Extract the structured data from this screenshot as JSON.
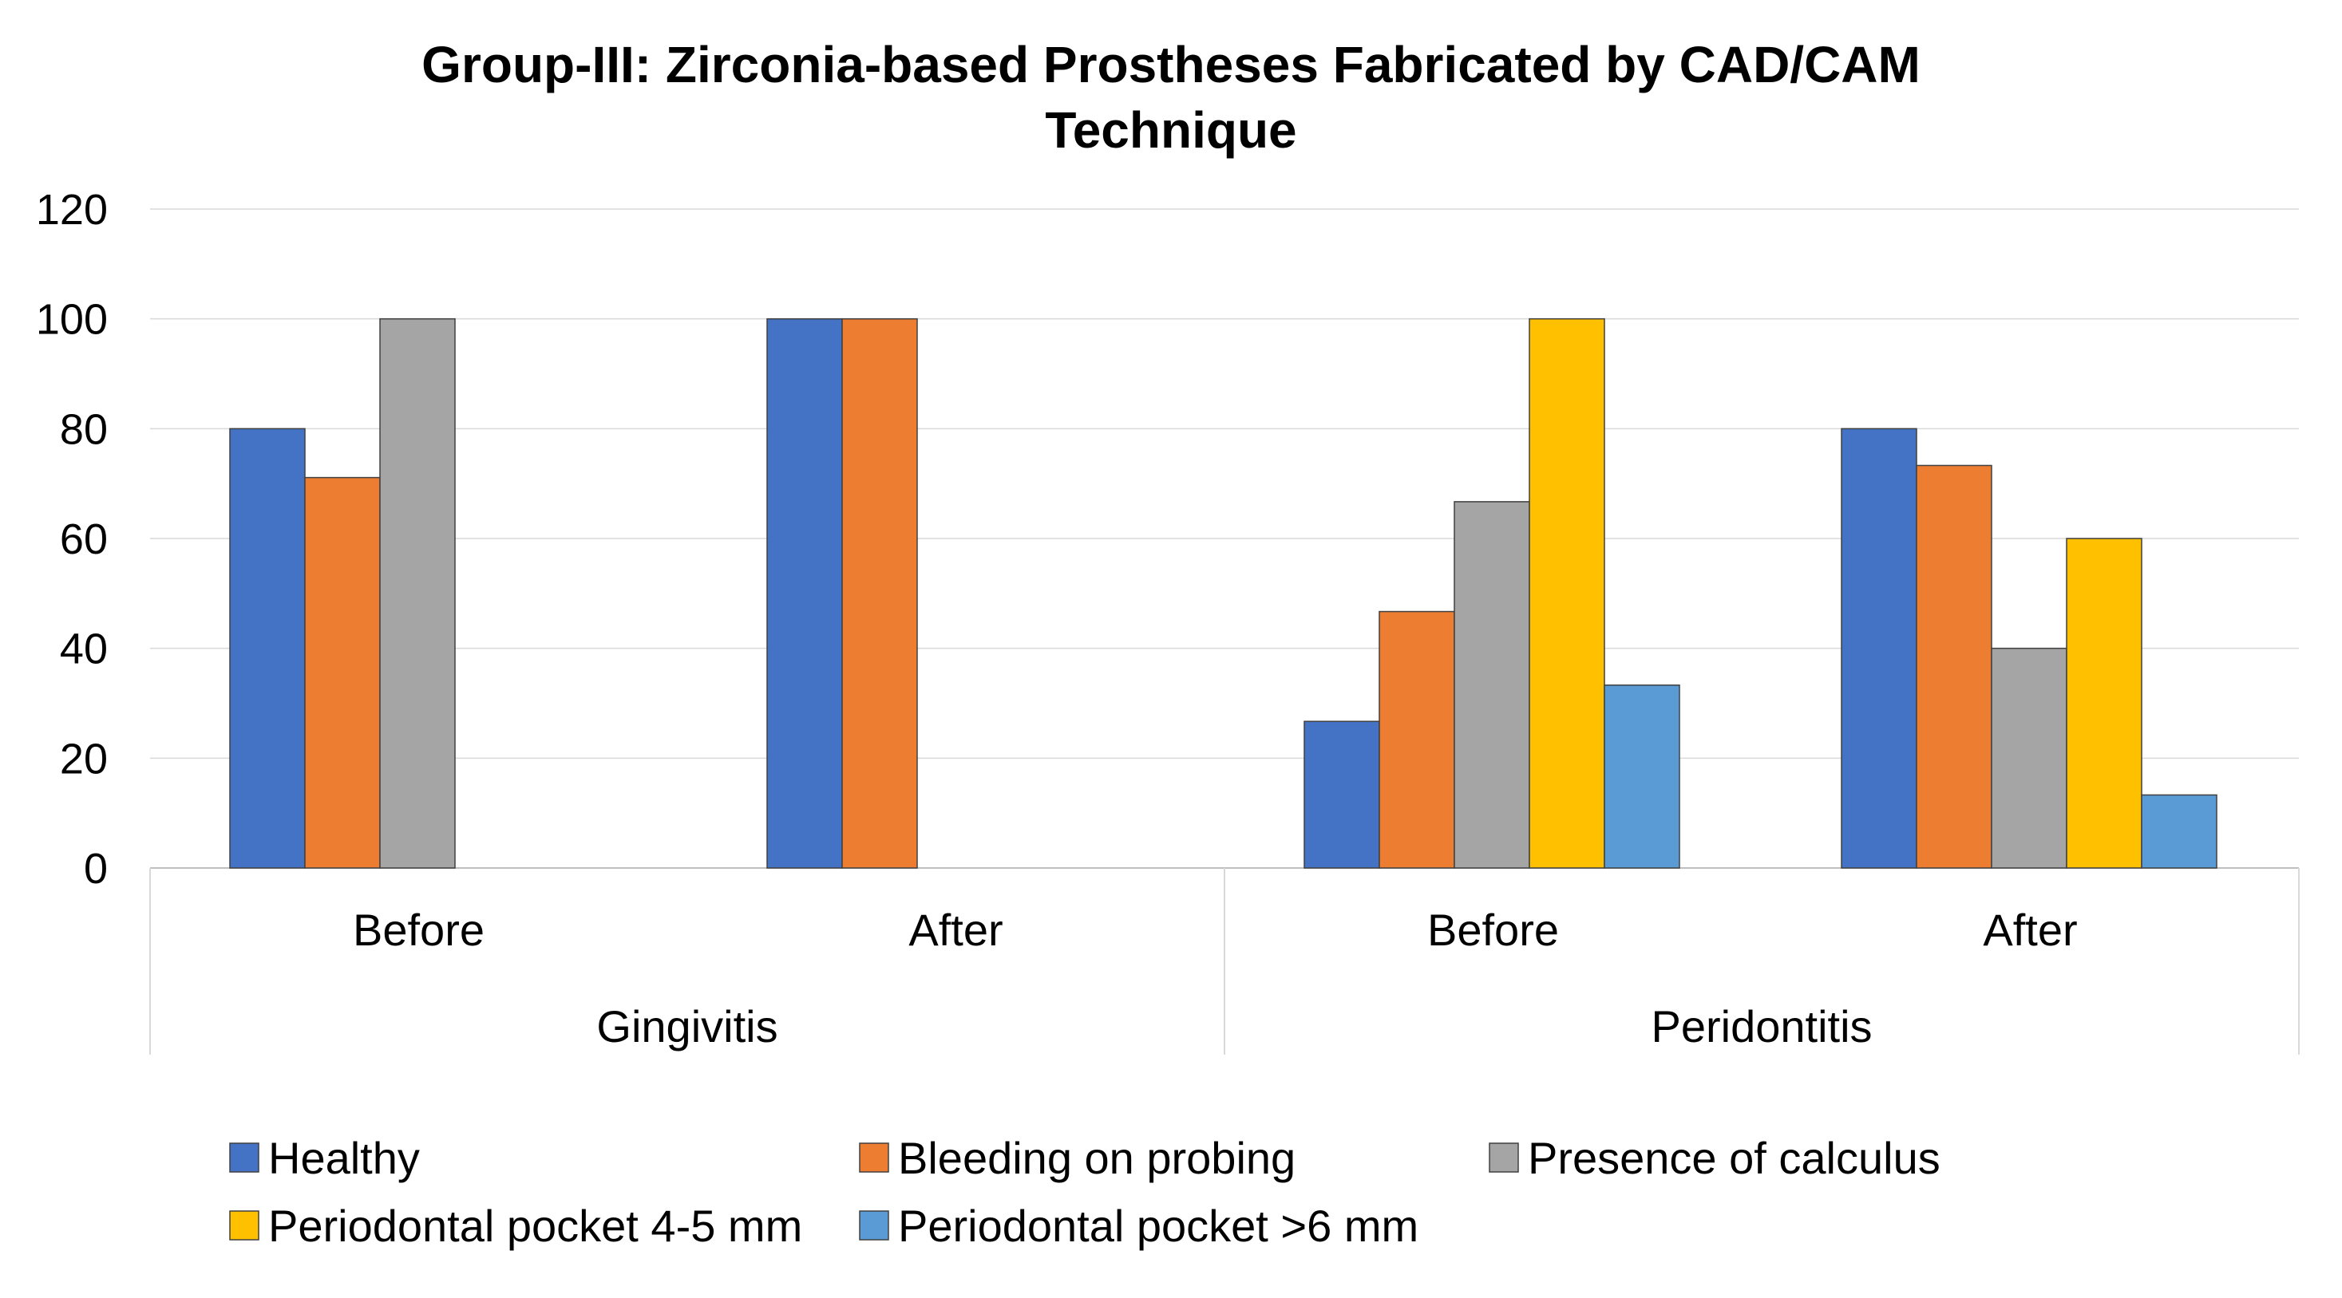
{
  "chart_data": {
    "type": "bar",
    "title_lines": [
      "Group-III:  Zirconia-based Prostheses Fabricated by CAD/CAM",
      "Technique"
    ],
    "ylim": [
      0,
      120
    ],
    "y_ticks": [
      "0",
      "20",
      "40",
      "60",
      "80",
      "100",
      "120"
    ],
    "groups": [
      {
        "label": "Gingivitis",
        "categories": [
          "Before",
          "After"
        ]
      },
      {
        "label": "Peridontitis",
        "categories": [
          "Before",
          "After"
        ]
      }
    ],
    "categories": [
      "Before",
      "After",
      "Before",
      "After"
    ],
    "series": [
      {
        "name": "Healthy",
        "color": "#4472C4",
        "values": [
          80,
          100,
          26.7,
          80
        ]
      },
      {
        "name": "Bleeding on probing",
        "color": "#ED7D31",
        "values": [
          71.1,
          100,
          46.7,
          73.3
        ]
      },
      {
        "name": "Presence of calculus",
        "color": "#A5A5A5",
        "values": [
          100,
          0,
          66.7,
          40
        ]
      },
      {
        "name": "Periodontal pocket 4-5 mm",
        "color": "#FFC000",
        "values": [
          0,
          0,
          100,
          60
        ]
      },
      {
        "name": "Periodontal pocket >6 mm",
        "color": "#5B9BD5",
        "values": [
          0,
          0,
          33.3,
          13.3
        ]
      }
    ]
  }
}
